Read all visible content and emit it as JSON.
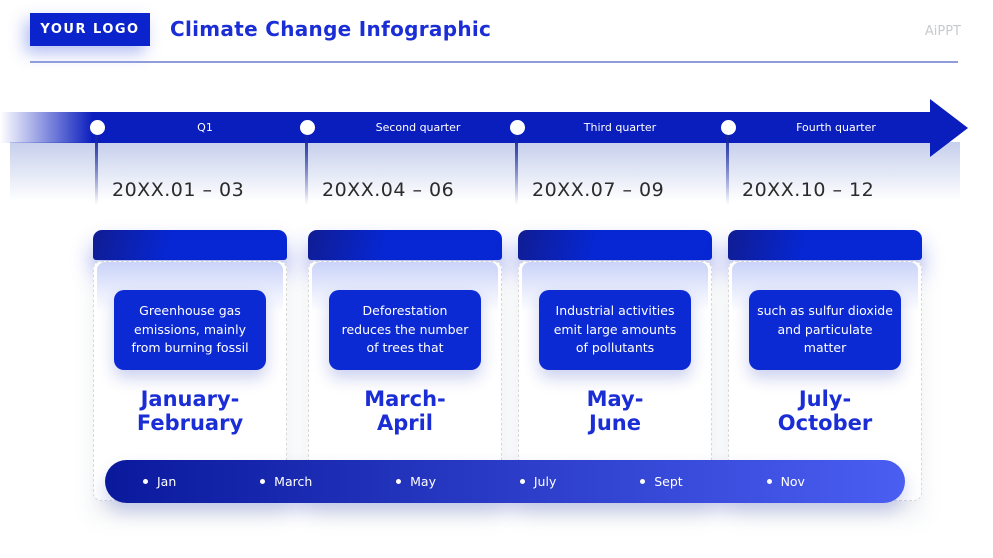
{
  "header": {
    "logo": "YOUR LOGO",
    "title": "Climate Change Infographic",
    "watermark": "AiPPT"
  },
  "timeline": {
    "quarters": [
      {
        "label": "Q1",
        "date": "20XX.01 – 03"
      },
      {
        "label": "Second quarter",
        "date": "20XX.04 – 06"
      },
      {
        "label": "Third quarter",
        "date": "20XX.07 – 09"
      },
      {
        "label": "Fourth quarter",
        "date": "20XX.10 – 12"
      }
    ]
  },
  "cards": [
    {
      "description": "Greenhouse gas emissions, mainly from burning fossil",
      "title": "January-\nFebruary"
    },
    {
      "description": "Deforestation reduces the number of trees that",
      "title": "March-\nApril"
    },
    {
      "description": "Industrial activities emit large amounts of pollutants",
      "title": "May-\nJune"
    },
    {
      "description": "such as sulfur dioxide and particulate matter",
      "title": "July-\nOctober"
    }
  ],
  "month_bar": [
    "Jan",
    "March",
    "May",
    "July",
    "Sept",
    "Nov"
  ],
  "colors": {
    "primary_blue": "#0627d3",
    "arrow_blue": "#0a1dbd",
    "pill_gradient_start": "#0a199c",
    "pill_gradient_end": "#4a5ef2",
    "title_text_blue": "#1b2ed6",
    "divider_blue": "#8f9ddc",
    "watermark_gray": "#c9cace",
    "date_text": "#2b2b2b"
  }
}
